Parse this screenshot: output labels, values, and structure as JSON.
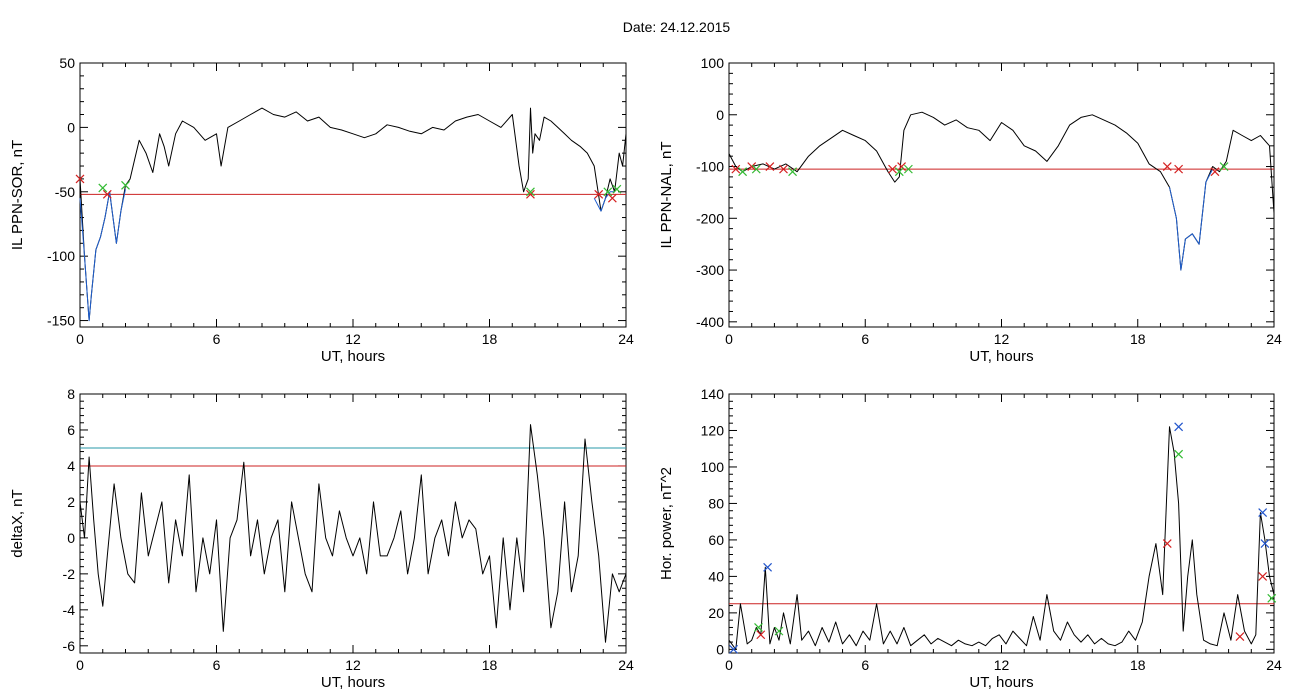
{
  "page": {
    "title": "Date:  24.12.2015"
  },
  "colors": {
    "axes": "#000000",
    "curve": "#000000",
    "highlight": "#1f5fcf",
    "threshold_red": "#cc2222",
    "threshold_teal": "#2a9aa8",
    "marker_red": "#d42020",
    "marker_green": "#33bb33",
    "marker_blue": "#2255cc"
  },
  "chart_data": [
    {
      "type": "line",
      "title": "",
      "xlabel": "UT, hours",
      "ylabel": "IL PPN-SOR, nT",
      "xlim": [
        0,
        24
      ],
      "ylim": [
        -155,
        50
      ],
      "xticks": [
        0,
        6,
        12,
        18,
        24
      ],
      "yticks": [
        50,
        0,
        -50,
        -100,
        -150
      ],
      "threshold": -52,
      "series": [
        {
          "kind": "curve",
          "x": [
            0,
            0.2,
            0.4,
            0.5,
            0.7,
            0.9,
            1.1,
            1.3,
            1.6,
            1.8,
            2.0,
            2.2,
            2.4,
            2.6,
            2.9,
            3.2,
            3.5,
            3.7,
            3.9,
            4.2,
            4.5,
            5.0,
            5.5,
            6.0,
            6.2,
            6.5,
            7.0,
            7.5,
            8.0,
            8.5,
            9.0,
            9.5,
            10.0,
            10.5,
            11.0,
            11.5,
            12.0,
            12.5,
            13.0,
            13.5,
            14.0,
            14.5,
            15.0,
            15.5,
            16.0,
            16.5,
            17.0,
            17.5,
            18.0,
            18.5,
            19.0,
            19.3,
            19.5,
            19.7,
            19.8,
            19.9,
            20.0,
            20.2,
            20.4,
            20.7,
            21.0,
            21.3,
            21.6,
            22.0,
            22.3,
            22.6,
            22.9,
            23.1,
            23.3,
            23.5,
            23.7,
            23.85,
            24.0
          ],
          "y": [
            -40,
            -100,
            -150,
            -130,
            -95,
            -85,
            -70,
            -50,
            -90,
            -65,
            -45,
            -40,
            -25,
            -10,
            -20,
            -35,
            -5,
            -15,
            -30,
            -5,
            5,
            0,
            -10,
            -5,
            -30,
            0,
            5,
            10,
            15,
            10,
            8,
            12,
            5,
            8,
            0,
            -2,
            -5,
            -8,
            -5,
            2,
            0,
            -3,
            -5,
            0,
            -2,
            5,
            8,
            10,
            5,
            0,
            10,
            -30,
            -50,
            -40,
            15,
            -20,
            -5,
            -10,
            8,
            5,
            0,
            -5,
            -10,
            -15,
            -20,
            -30,
            -65,
            -55,
            -40,
            -50,
            -20,
            -30,
            -5
          ]
        },
        {
          "kind": "highlight",
          "x": [
            0,
            0.2,
            0.4,
            0.5,
            0.7,
            0.9,
            1.1,
            1.3,
            1.6,
            1.8,
            2.0
          ],
          "y": [
            -55,
            -100,
            -150,
            -130,
            -95,
            -85,
            -70,
            -50,
            -90,
            -65,
            -48
          ]
        },
        {
          "kind": "highlight",
          "x": [
            22.6,
            22.9,
            23.1,
            23.3,
            23.5
          ],
          "y": [
            -55,
            -65,
            -55,
            -50,
            -50
          ]
        }
      ],
      "markers_red": [
        [
          0,
          -40
        ],
        [
          1.2,
          -52
        ],
        [
          19.8,
          -52
        ],
        [
          22.8,
          -52
        ],
        [
          23.4,
          -55
        ]
      ],
      "markers_green": [
        [
          1.0,
          -47
        ],
        [
          2.0,
          -45
        ],
        [
          19.8,
          -50
        ],
        [
          23.2,
          -50
        ],
        [
          23.6,
          -48
        ]
      ],
      "markers_blue": []
    },
    {
      "type": "line",
      "title": "",
      "xlabel": "UT, hours",
      "ylabel": "IL PPN-NAL, nT",
      "xlim": [
        0,
        24
      ],
      "ylim": [
        -410,
        100
      ],
      "xticks": [
        0,
        6,
        12,
        18,
        24
      ],
      "yticks": [
        100,
        0,
        -100,
        -200,
        -300,
        -400
      ],
      "threshold": -105,
      "series": [
        {
          "kind": "curve",
          "x": [
            0,
            0.3,
            0.6,
            1.0,
            1.5,
            2.0,
            2.5,
            3.0,
            3.5,
            4.0,
            4.5,
            5.0,
            5.5,
            6.0,
            6.5,
            7.0,
            7.3,
            7.5,
            7.7,
            8.0,
            8.5,
            9.0,
            9.5,
            10.0,
            10.5,
            11.0,
            11.5,
            12.0,
            12.5,
            13.0,
            13.5,
            14.0,
            14.5,
            15.0,
            15.5,
            16.0,
            16.5,
            17.0,
            17.5,
            18.0,
            18.5,
            19.0,
            19.4,
            19.7,
            19.9,
            20.1,
            20.4,
            20.7,
            21.0,
            21.3,
            21.6,
            21.9,
            22.2,
            22.6,
            23.0,
            23.4,
            23.8,
            24.0
          ],
          "y": [
            -75,
            -100,
            -110,
            -100,
            -95,
            -105,
            -95,
            -110,
            -80,
            -60,
            -45,
            -30,
            -40,
            -50,
            -70,
            -110,
            -130,
            -120,
            -30,
            0,
            5,
            -5,
            -20,
            -10,
            -25,
            -30,
            -50,
            -15,
            -30,
            -60,
            -70,
            -90,
            -60,
            -20,
            -5,
            0,
            -10,
            -20,
            -35,
            -55,
            -95,
            -110,
            -140,
            -200,
            -300,
            -240,
            -230,
            -250,
            -130,
            -100,
            -110,
            -90,
            -30,
            -40,
            -50,
            -40,
            -60,
            -190
          ]
        },
        {
          "kind": "highlight",
          "x": [
            19.4,
            19.7,
            19.9,
            20.1,
            20.4,
            20.7,
            21.0,
            21.3
          ],
          "y": [
            -140,
            -200,
            -300,
            -240,
            -230,
            -250,
            -130,
            -105
          ]
        }
      ],
      "markers_red": [
        [
          0.3,
          -105
        ],
        [
          1.0,
          -100
        ],
        [
          1.8,
          -100
        ],
        [
          2.4,
          -105
        ],
        [
          7.2,
          -105
        ],
        [
          7.6,
          -100
        ],
        [
          19.3,
          -100
        ],
        [
          19.8,
          -105
        ],
        [
          21.4,
          -110
        ]
      ],
      "markers_green": [
        [
          0.6,
          -110
        ],
        [
          1.2,
          -105
        ],
        [
          2.8,
          -110
        ],
        [
          7.5,
          -110
        ],
        [
          7.9,
          -105
        ],
        [
          21.8,
          -100
        ]
      ],
      "markers_blue": []
    },
    {
      "type": "line",
      "title": "",
      "xlabel": "UT, hours",
      "ylabel": "deltaX, nT",
      "xlim": [
        0,
        24
      ],
      "ylim": [
        -6.4,
        8
      ],
      "xticks": [
        0,
        6,
        12,
        18,
        24
      ],
      "yticks": [
        8,
        6,
        4,
        2,
        0,
        -2,
        -4,
        -6
      ],
      "threshold": 4,
      "threshold2": 5,
      "series": [
        {
          "kind": "curve",
          "x": [
            0,
            0.2,
            0.4,
            0.6,
            0.8,
            1.0,
            1.2,
            1.5,
            1.8,
            2.1,
            2.4,
            2.7,
            3.0,
            3.3,
            3.6,
            3.9,
            4.2,
            4.5,
            4.8,
            5.1,
            5.4,
            5.7,
            6.0,
            6.3,
            6.6,
            6.9,
            7.2,
            7.5,
            7.8,
            8.1,
            8.4,
            8.7,
            9.0,
            9.3,
            9.6,
            9.9,
            10.2,
            10.5,
            10.8,
            11.1,
            11.4,
            11.7,
            12.0,
            12.3,
            12.6,
            12.9,
            13.2,
            13.5,
            13.8,
            14.1,
            14.4,
            14.7,
            15.0,
            15.3,
            15.6,
            15.9,
            16.2,
            16.5,
            16.8,
            17.1,
            17.4,
            17.7,
            18.0,
            18.3,
            18.6,
            18.9,
            19.2,
            19.5,
            19.8,
            20.1,
            20.4,
            20.7,
            21.0,
            21.3,
            21.6,
            21.9,
            22.2,
            22.5,
            22.8,
            23.1,
            23.4,
            23.7,
            24.0
          ],
          "y": [
            2,
            0,
            4.5,
            1,
            -2,
            -3.8,
            -1,
            3,
            0,
            -2,
            -2.5,
            2.5,
            -1,
            0.5,
            2,
            -2.5,
            1,
            -1,
            3.5,
            -3,
            0,
            -2,
            1,
            -5.2,
            0,
            1,
            4.2,
            -1,
            1,
            -2,
            0,
            1,
            -3,
            2,
            0,
            -2,
            -3,
            3,
            0,
            -1,
            1.5,
            0,
            -1,
            0,
            -2,
            2,
            -1,
            -1,
            0,
            1.5,
            -2,
            0,
            3.5,
            -2,
            0,
            1,
            -1,
            2,
            0,
            1,
            0.5,
            -2,
            -1,
            -5,
            0,
            -4,
            0,
            -3,
            6.3,
            3.5,
            0,
            -5,
            -3,
            2,
            -3,
            -1,
            5.5,
            2,
            -1,
            -5.8,
            -2,
            -3,
            -2
          ]
        }
      ],
      "markers_red": [],
      "markers_green": [],
      "markers_blue": []
    },
    {
      "type": "line",
      "title": "",
      "xlabel": "UT, hours",
      "ylabel": "Hor. power, nT^2",
      "xlim": [
        0,
        24
      ],
      "ylim": [
        -2,
        140
      ],
      "xticks": [
        0,
        6,
        12,
        18,
        24
      ],
      "yticks": [
        140,
        120,
        100,
        80,
        60,
        40,
        20,
        0
      ],
      "threshold": 25,
      "series": [
        {
          "kind": "curve",
          "x": [
            0,
            0.3,
            0.5,
            0.8,
            1.0,
            1.2,
            1.4,
            1.6,
            1.8,
            2.0,
            2.2,
            2.4,
            2.7,
            3.0,
            3.2,
            3.5,
            3.8,
            4.1,
            4.4,
            4.7,
            5.0,
            5.3,
            5.6,
            5.9,
            6.2,
            6.5,
            6.8,
            7.1,
            7.4,
            7.7,
            8.0,
            8.3,
            8.6,
            8.9,
            9.2,
            9.5,
            9.8,
            10.1,
            10.4,
            10.7,
            11.0,
            11.3,
            11.6,
            11.9,
            12.2,
            12.5,
            12.8,
            13.1,
            13.4,
            13.7,
            14.0,
            14.3,
            14.6,
            14.9,
            15.2,
            15.5,
            15.8,
            16.1,
            16.4,
            16.7,
            17.0,
            17.3,
            17.6,
            17.9,
            18.2,
            18.5,
            18.8,
            19.1,
            19.4,
            19.6,
            19.8,
            20.0,
            20.2,
            20.4,
            20.6,
            20.9,
            21.2,
            21.5,
            21.8,
            22.1,
            22.4,
            22.7,
            23.0,
            23.2,
            23.4,
            23.6,
            23.8,
            24.0
          ],
          "y": [
            5,
            0,
            25,
            3,
            5,
            12,
            8,
            45,
            3,
            12,
            5,
            20,
            3,
            30,
            5,
            10,
            2,
            12,
            4,
            15,
            3,
            8,
            2,
            10,
            5,
            25,
            3,
            10,
            3,
            12,
            2,
            5,
            8,
            3,
            6,
            4,
            2,
            5,
            3,
            2,
            4,
            2,
            6,
            8,
            3,
            10,
            6,
            2,
            18,
            5,
            30,
            10,
            5,
            15,
            8,
            4,
            8,
            3,
            6,
            3,
            2,
            4,
            10,
            5,
            15,
            40,
            58,
            30,
            122,
            108,
            80,
            10,
            40,
            60,
            30,
            5,
            3,
            2,
            20,
            5,
            30,
            10,
            3,
            8,
            75,
            60,
            40,
            30
          ]
        }
      ],
      "markers_red": [
        [
          1.4,
          8
        ],
        [
          19.3,
          58
        ],
        [
          22.5,
          7
        ],
        [
          23.5,
          40
        ]
      ],
      "markers_green": [
        [
          1.3,
          12
        ],
        [
          2.2,
          10
        ],
        [
          19.8,
          107
        ],
        [
          23.9,
          28
        ]
      ],
      "markers_blue": [
        [
          0.2,
          0
        ],
        [
          1.7,
          45
        ],
        [
          19.8,
          122
        ],
        [
          23.5,
          75
        ],
        [
          23.6,
          58
        ]
      ]
    }
  ]
}
